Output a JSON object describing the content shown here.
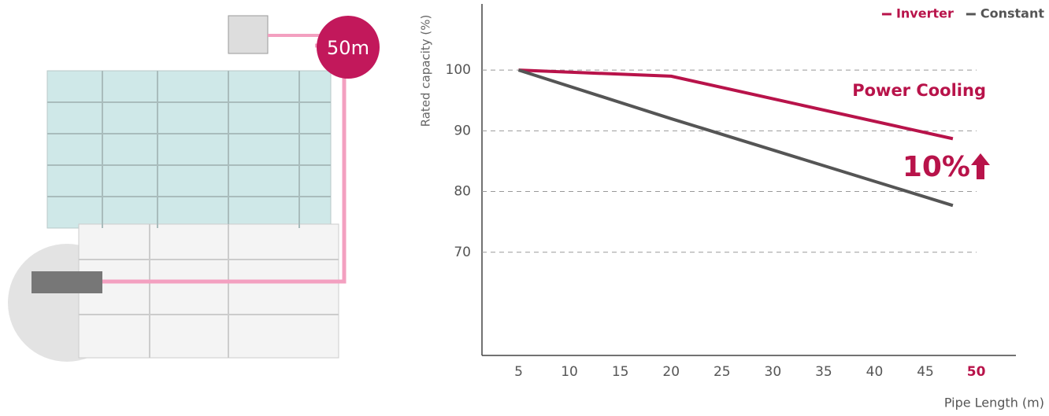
{
  "illustration": {
    "pipe_label": "50m"
  },
  "chart_data": {
    "type": "line",
    "x_label": "Pipe Length (m)",
    "y_label": "Rated capacity (%)",
    "x": [
      5,
      20,
      47.7
    ],
    "series": [
      {
        "name": "Inverter",
        "color": "#b8134a",
        "values": [
          100,
          99,
          88.7
        ]
      },
      {
        "name": "Constant",
        "color": "#555555",
        "values": [
          100,
          92,
          77.7
        ]
      }
    ],
    "xlim": [
      1.4,
      53.9
    ],
    "xticks": [
      5,
      10,
      15,
      20,
      25,
      30,
      35,
      40,
      45,
      50
    ],
    "ylim": [
      53,
      110.9
    ],
    "yticks": [
      70,
      80,
      90,
      100
    ],
    "grid": true,
    "legend": "top-right",
    "annotations": [
      "Power Cooling",
      "10%"
    ]
  }
}
